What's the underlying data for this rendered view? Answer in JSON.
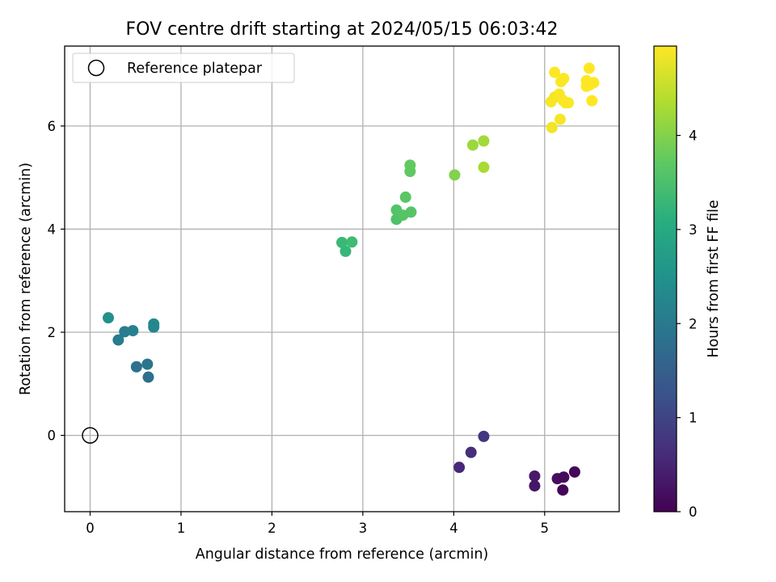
{
  "chart_data": {
    "type": "scatter",
    "title": "FOV centre drift starting at 2024/05/15 06:03:42",
    "xlabel": "Angular distance from reference (arcmin)",
    "ylabel": "Rotation from reference (arcmin)",
    "xlim": [
      -0.28,
      5.82
    ],
    "ylim": [
      -1.48,
      7.55
    ],
    "xticks": [
      0,
      1,
      2,
      3,
      4,
      5
    ],
    "yticks": [
      0,
      2,
      4,
      6
    ],
    "grid": true,
    "legend": {
      "placement": "top-left",
      "entries": [
        "Reference platepar"
      ]
    },
    "reference_point": {
      "x": 0.0,
      "y": 0.0,
      "label": "Reference platepar"
    },
    "colorbar": {
      "label": "Hours from first FF file",
      "colormap": "viridis",
      "range": [
        0,
        4.95
      ],
      "ticks": [
        0,
        1,
        2,
        3,
        4
      ]
    },
    "points": [
      {
        "x": 4.33,
        "y": -0.02,
        "hours": 0.78
      },
      {
        "x": 4.19,
        "y": -0.33,
        "hours": 0.65
      },
      {
        "x": 4.06,
        "y": -0.62,
        "hours": 0.55
      },
      {
        "x": 4.89,
        "y": -0.79,
        "hours": 0.35
      },
      {
        "x": 4.89,
        "y": -0.98,
        "hours": 0.3
      },
      {
        "x": 5.14,
        "y": -0.84,
        "hours": 0.18
      },
      {
        "x": 5.21,
        "y": -0.81,
        "hours": 0.12
      },
      {
        "x": 5.33,
        "y": -0.71,
        "hours": 0.08
      },
      {
        "x": 5.2,
        "y": -1.06,
        "hours": 0.05
      },
      {
        "x": 0.64,
        "y": 1.13,
        "hours": 1.8
      },
      {
        "x": 0.51,
        "y": 1.33,
        "hours": 1.85
      },
      {
        "x": 0.63,
        "y": 1.38,
        "hours": 1.9
      },
      {
        "x": 0.31,
        "y": 1.85,
        "hours": 2.05
      },
      {
        "x": 0.38,
        "y": 2.01,
        "hours": 2.1
      },
      {
        "x": 0.47,
        "y": 2.03,
        "hours": 2.15
      },
      {
        "x": 0.7,
        "y": 2.1,
        "hours": 2.25
      },
      {
        "x": 0.7,
        "y": 2.16,
        "hours": 2.3
      },
      {
        "x": 0.2,
        "y": 2.28,
        "hours": 2.5
      },
      {
        "x": 2.81,
        "y": 3.57,
        "hours": 3.3
      },
      {
        "x": 2.77,
        "y": 3.74,
        "hours": 3.35
      },
      {
        "x": 2.88,
        "y": 3.75,
        "hours": 3.4
      },
      {
        "x": 3.37,
        "y": 4.19,
        "hours": 3.55
      },
      {
        "x": 3.37,
        "y": 4.37,
        "hours": 3.58
      },
      {
        "x": 3.44,
        "y": 4.27,
        "hours": 3.6
      },
      {
        "x": 3.53,
        "y": 4.33,
        "hours": 3.62
      },
      {
        "x": 3.47,
        "y": 4.62,
        "hours": 3.65
      },
      {
        "x": 3.52,
        "y": 5.12,
        "hours": 3.7
      },
      {
        "x": 3.52,
        "y": 5.24,
        "hours": 3.72
      },
      {
        "x": 4.01,
        "y": 5.05,
        "hours": 4.0
      },
      {
        "x": 4.21,
        "y": 5.63,
        "hours": 4.2
      },
      {
        "x": 4.33,
        "y": 5.71,
        "hours": 4.25
      },
      {
        "x": 4.33,
        "y": 5.2,
        "hours": 4.3
      },
      {
        "x": 5.08,
        "y": 5.97,
        "hours": 4.85
      },
      {
        "x": 5.17,
        "y": 6.13,
        "hours": 4.9
      },
      {
        "x": 5.07,
        "y": 6.47,
        "hours": 4.9
      },
      {
        "x": 5.11,
        "y": 6.56,
        "hours": 4.9
      },
      {
        "x": 5.16,
        "y": 6.62,
        "hours": 4.92
      },
      {
        "x": 5.2,
        "y": 6.5,
        "hours": 4.92
      },
      {
        "x": 5.23,
        "y": 6.45,
        "hours": 4.93
      },
      {
        "x": 5.26,
        "y": 6.45,
        "hours": 4.93
      },
      {
        "x": 5.18,
        "y": 6.86,
        "hours": 4.93
      },
      {
        "x": 5.21,
        "y": 6.92,
        "hours": 4.94
      },
      {
        "x": 5.11,
        "y": 7.04,
        "hours": 4.94
      },
      {
        "x": 5.46,
        "y": 6.88,
        "hours": 4.95
      },
      {
        "x": 5.46,
        "y": 6.77,
        "hours": 4.95
      },
      {
        "x": 5.5,
        "y": 6.8,
        "hours": 4.95
      },
      {
        "x": 5.54,
        "y": 6.84,
        "hours": 4.95
      },
      {
        "x": 5.49,
        "y": 7.12,
        "hours": 4.95
      },
      {
        "x": 5.52,
        "y": 6.49,
        "hours": 4.95
      }
    ]
  }
}
